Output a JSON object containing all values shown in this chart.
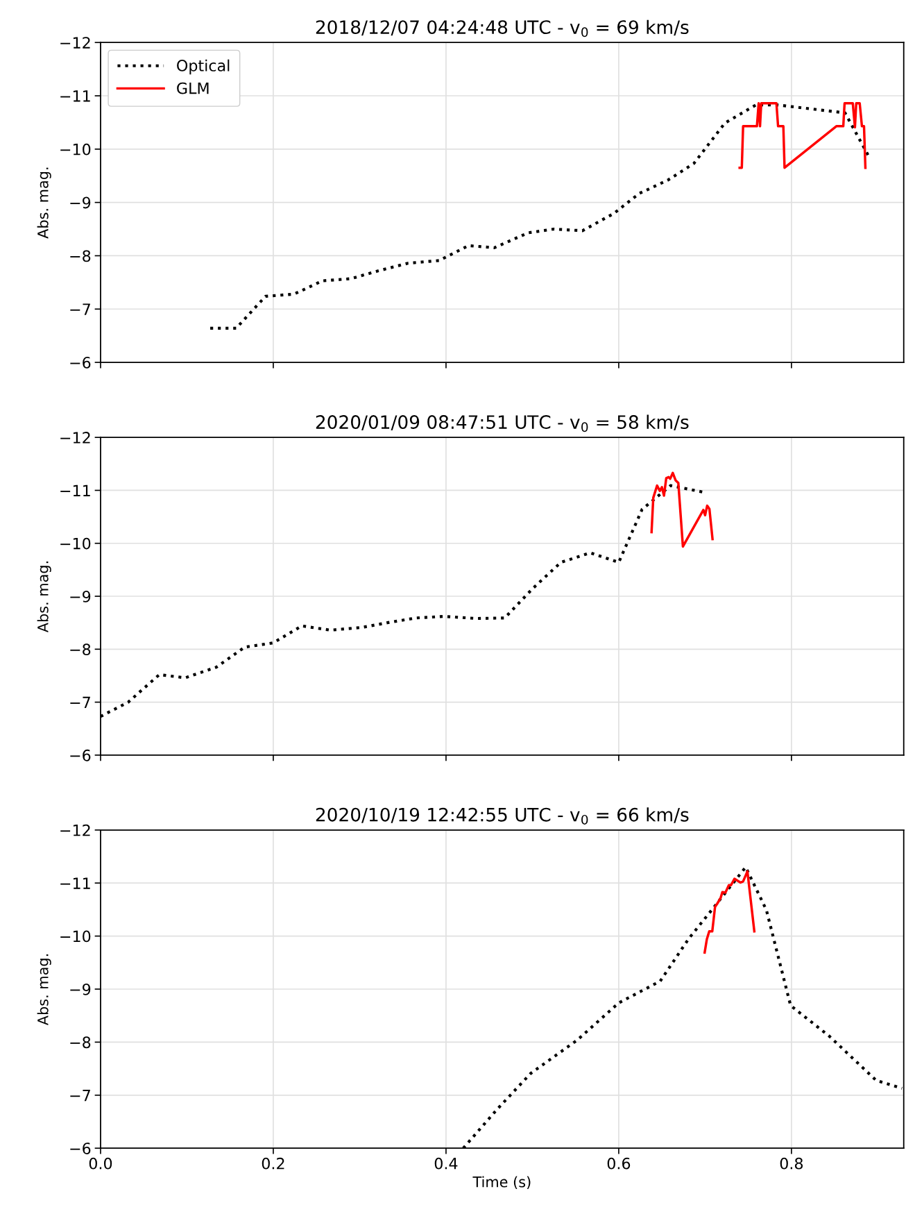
{
  "chart_data": [
    {
      "type": "line",
      "title": "2018/12/07 04:24:48 UTC - v$_{0}$ = 69 km/s",
      "ylabel": "Abs. mag.",
      "xlim": [
        0,
        0.93
      ],
      "ylim": [
        -6,
        -12
      ],
      "xticks": [
        {
          "value": 0,
          "label": null
        },
        {
          "value": 0.2,
          "label": null
        },
        {
          "value": 0.4,
          "label": null
        },
        {
          "value": 0.6,
          "label": null
        },
        {
          "value": 0.8,
          "label": null
        }
      ],
      "yticks": [
        {
          "value": -12,
          "label": "−12"
        },
        {
          "value": -11,
          "label": "−11"
        },
        {
          "value": -10,
          "label": "−10"
        },
        {
          "value": -9,
          "label": "−9"
        },
        {
          "value": -8,
          "label": "−8"
        },
        {
          "value": -7,
          "label": "−7"
        },
        {
          "value": -6,
          "label": "−6"
        }
      ],
      "tick_labels": "y",
      "grid": true,
      "legend": "top left",
      "series": [
        {
          "name": "Optical",
          "color": "#000000",
          "line_style": "dotted",
          "x": [
            0.127,
            0.157,
            0.191,
            0.224,
            0.257,
            0.29,
            0.32,
            0.356,
            0.392,
            0.426,
            0.456,
            0.495,
            0.525,
            0.558,
            0.594,
            0.624,
            0.657,
            0.687,
            0.723,
            0.759,
            0.783,
            0.862,
            0.89
          ],
          "values": [
            -6.64,
            -6.64,
            -7.24,
            -7.28,
            -7.53,
            -7.57,
            -7.71,
            -7.86,
            -7.91,
            -8.19,
            -8.15,
            -8.43,
            -8.5,
            -8.47,
            -8.79,
            -9.17,
            -9.42,
            -9.73,
            -10.49,
            -10.83,
            -10.83,
            -10.68,
            -9.85
          ]
        },
        {
          "name": "GLM",
          "color": "#ff0000",
          "line_style": "solid",
          "x": [
            0.74,
            0.7425,
            0.744,
            0.76,
            0.762,
            0.7636,
            0.765,
            0.7826,
            0.7845,
            0.7906,
            0.792,
            0.852,
            0.86,
            0.8615,
            0.871,
            0.8735,
            0.875,
            0.879,
            0.8816,
            0.884,
            0.8856
          ],
          "values": [
            -9.65,
            -9.65,
            -10.43,
            -10.43,
            -10.86,
            -10.43,
            -10.86,
            -10.86,
            -10.43,
            -10.43,
            -9.65,
            -10.43,
            -10.43,
            -10.86,
            -10.86,
            -10.41,
            -10.86,
            -10.86,
            -10.43,
            -10.43,
            -9.65
          ]
        }
      ]
    },
    {
      "type": "line",
      "title": "2020/01/09 08:47:51 UTC - v$_{0}$ = 58 km/s",
      "ylabel": "Abs. mag.",
      "xlim": [
        0,
        0.93
      ],
      "ylim": [
        -6,
        -12
      ],
      "xticks": [
        {
          "value": 0,
          "label": null
        },
        {
          "value": 0.2,
          "label": null
        },
        {
          "value": 0.4,
          "label": null
        },
        {
          "value": 0.6,
          "label": null
        },
        {
          "value": 0.8,
          "label": null
        }
      ],
      "yticks": [
        {
          "value": -12,
          "label": "−12"
        },
        {
          "value": -11,
          "label": "−11"
        },
        {
          "value": -10,
          "label": "−10"
        },
        {
          "value": -9,
          "label": "−9"
        },
        {
          "value": -8,
          "label": "−8"
        },
        {
          "value": -7,
          "label": "−7"
        },
        {
          "value": -6,
          "label": "−6"
        }
      ],
      "tick_labels": "y",
      "grid": true,
      "series": [
        {
          "color": "#000000",
          "line_style": "dotted",
          "x": [
            0.0,
            0.032,
            0.068,
            0.098,
            0.134,
            0.167,
            0.2,
            0.233,
            0.266,
            0.302,
            0.332,
            0.365,
            0.398,
            0.435,
            0.468,
            0.5,
            0.533,
            0.567,
            0.6,
            0.627,
            0.66,
            0.7
          ],
          "values": [
            -6.73,
            -7.0,
            -7.52,
            -7.46,
            -7.66,
            -8.04,
            -8.12,
            -8.44,
            -8.36,
            -8.41,
            -8.5,
            -8.59,
            -8.62,
            -8.58,
            -8.59,
            -9.14,
            -9.64,
            -9.82,
            -9.64,
            -10.64,
            -11.09,
            -10.96
          ]
        },
        {
          "color": "#ff0000",
          "line_style": "solid",
          "x": [
            0.638,
            0.64,
            0.6444,
            0.6476,
            0.65,
            0.6524,
            0.655,
            0.6578,
            0.6596,
            0.6626,
            0.6658,
            0.669,
            0.6743,
            0.698,
            0.7,
            0.7024,
            0.705,
            0.7086
          ],
          "values": [
            -10.21,
            -10.86,
            -11.09,
            -10.99,
            -11.06,
            -10.9,
            -11.23,
            -11.25,
            -11.22,
            -11.33,
            -11.19,
            -11.14,
            -9.94,
            -10.63,
            -10.53,
            -10.71,
            -10.65,
            -10.08
          ]
        }
      ]
    },
    {
      "type": "line",
      "title": "2020/10/19 12:42:55 UTC - v$_{0}$ = 66 km/s",
      "xlabel": "Time (s)",
      "ylabel": "Abs. mag.",
      "xlim": [
        0,
        0.93
      ],
      "ylim": [
        -6,
        -12
      ],
      "xticks": [
        {
          "value": 0,
          "label": "0.0"
        },
        0.2,
        0.4,
        0.6,
        0.8
      ],
      "yticks": [
        {
          "value": -12,
          "label": "−12"
        },
        {
          "value": -11,
          "label": "−11"
        },
        {
          "value": -10,
          "label": "−10"
        },
        {
          "value": -9,
          "label": "−9"
        },
        {
          "value": -8,
          "label": "−8"
        },
        {
          "value": -7,
          "label": "−7"
        },
        {
          "value": -6,
          "label": "−6"
        }
      ],
      "grid": true,
      "series": [
        {
          "color": "#000000",
          "line_style": "dotted",
          "x": [
            0.42,
            0.459,
            0.498,
            0.552,
            0.6,
            0.648,
            0.681,
            0.711,
            0.747,
            0.771,
            0.799,
            0.844,
            0.898,
            0.928
          ],
          "values": [
            -6.0,
            -6.73,
            -7.41,
            -8.04,
            -8.74,
            -9.15,
            -9.95,
            -10.56,
            -11.3,
            -10.49,
            -8.69,
            -8.11,
            -7.28,
            -7.13
          ]
        },
        {
          "color": "#ff0000",
          "line_style": "solid",
          "x": [
            0.6995,
            0.702,
            0.7048,
            0.7083,
            0.7115,
            0.714,
            0.718,
            0.72,
            0.7235,
            0.7275,
            0.73,
            0.734,
            0.741,
            0.744,
            0.749,
            0.757
          ],
          "values": [
            -9.69,
            -9.94,
            -10.09,
            -10.09,
            -10.55,
            -10.61,
            -10.72,
            -10.83,
            -10.82,
            -10.96,
            -10.96,
            -11.08,
            -11.01,
            -11.03,
            -11.22,
            -10.09
          ]
        }
      ]
    }
  ]
}
